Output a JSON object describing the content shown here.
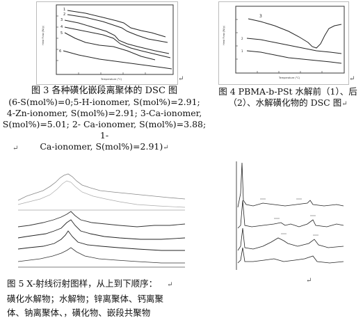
{
  "figure3": {
    "caption_title": "图 3  各种磺化嵌段离聚体的 DSC 图",
    "caption_lines": [
      "(6-S(mol%)=0;5-H-ionomer, S(mol%)=2.91;",
      "4-Zn-ionomer, S(mol%)=2.91; 3-Ca-ionomer,",
      "S(mol%)=5.01; 2- Ca-ionomer, S(mol%)=3.88;  1-",
      "Ca-ionomer, S(mol%)=2.91)"
    ],
    "curve_labels": [
      "1",
      "2",
      "3",
      "4",
      "5",
      "6"
    ],
    "y_axis_label": "Heat Flow (W/g)",
    "x_axis_label": "Temperature (°C)"
  },
  "figure4": {
    "caption_line1": "图 4  PBMA-b-PSt 水解前（1）、后",
    "caption_line2": "（2）、水解磺化物的 DSC 图",
    "curve_labels": [
      "3",
      "2",
      "1"
    ],
    "y_axis_label": "Heat Flow (W/g)",
    "x_axis_label": "Temperature (°C)"
  },
  "figure5": {
    "caption_line1": "图 5  X-射线衍射图样，从上到下顺序：",
    "caption_line2": "磺化水解物；水解物；锌离聚体、钙离聚",
    "caption_line3": "体、钠离聚体、，磺化物、嵌段共聚物"
  },
  "marks": {
    "return_symbol": "↵"
  }
}
